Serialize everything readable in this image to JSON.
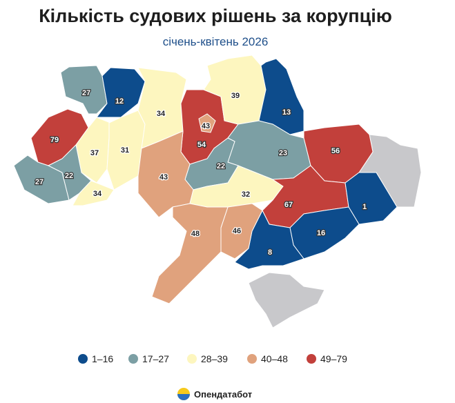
{
  "chart_data": {
    "type": "choropleth",
    "title": "Кількість судових рішень за корупцію",
    "subtitle": "січень-квітень 2026",
    "values": [
      27,
      12,
      79,
      37,
      31,
      27,
      22,
      34,
      34,
      54,
      43,
      39,
      13,
      23,
      56,
      22,
      43,
      32,
      67,
      1,
      16,
      8,
      46,
      48
    ],
    "legend": [
      {
        "label": "1–16",
        "range": [
          1,
          16
        ],
        "color": "#0d4c8c"
      },
      {
        "label": "17–27",
        "range": [
          17,
          27
        ],
        "color": "#7c9fa4"
      },
      {
        "label": "28–39",
        "range": [
          28,
          39
        ],
        "color": "#fdf6bf"
      },
      {
        "label": "40–48",
        "range": [
          40,
          48
        ],
        "color": "#e0a27d"
      },
      {
        "label": "49–79",
        "range": [
          49,
          79
        ],
        "color": "#c2403b"
      }
    ],
    "source": "Опендатабот"
  }
}
